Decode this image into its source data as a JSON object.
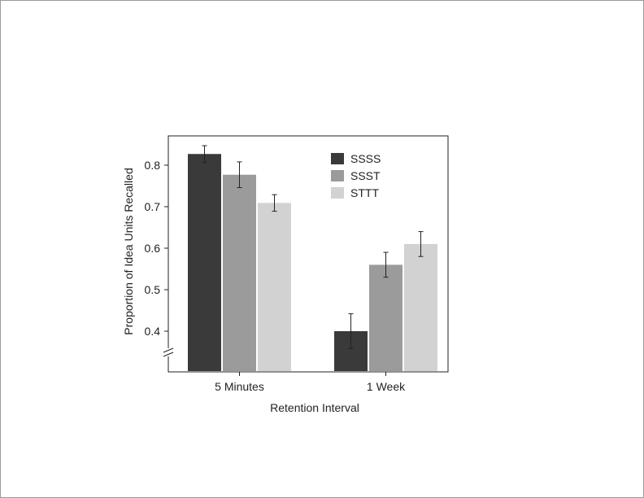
{
  "chart_data": {
    "type": "bar",
    "title": "",
    "xlabel": "Retention Interval",
    "ylabel": "Proportion of Idea Units Recalled",
    "categories": [
      "5 Minutes",
      "1 Week"
    ],
    "ylim": [
      0.35,
      0.85
    ],
    "yticks": [
      0.4,
      0.5,
      0.6,
      0.7,
      0.8
    ],
    "ytick_labels": [
      "0.4",
      "0.5",
      "0.6",
      "0.7",
      "0.8"
    ],
    "axis_break": true,
    "legend_position": "top-right",
    "series": [
      {
        "name": "SSSS",
        "color": "#3a3a3a",
        "values": [
          0.827,
          0.4
        ],
        "errors": [
          0.02,
          0.042
        ]
      },
      {
        "name": "SSST",
        "color": "#9b9b9b",
        "values": [
          0.777,
          0.56
        ],
        "errors": [
          0.031,
          0.03
        ]
      },
      {
        "name": "STTT",
        "color": "#d2d2d2",
        "values": [
          0.709,
          0.61
        ],
        "errors": [
          0.02,
          0.03
        ]
      }
    ]
  }
}
